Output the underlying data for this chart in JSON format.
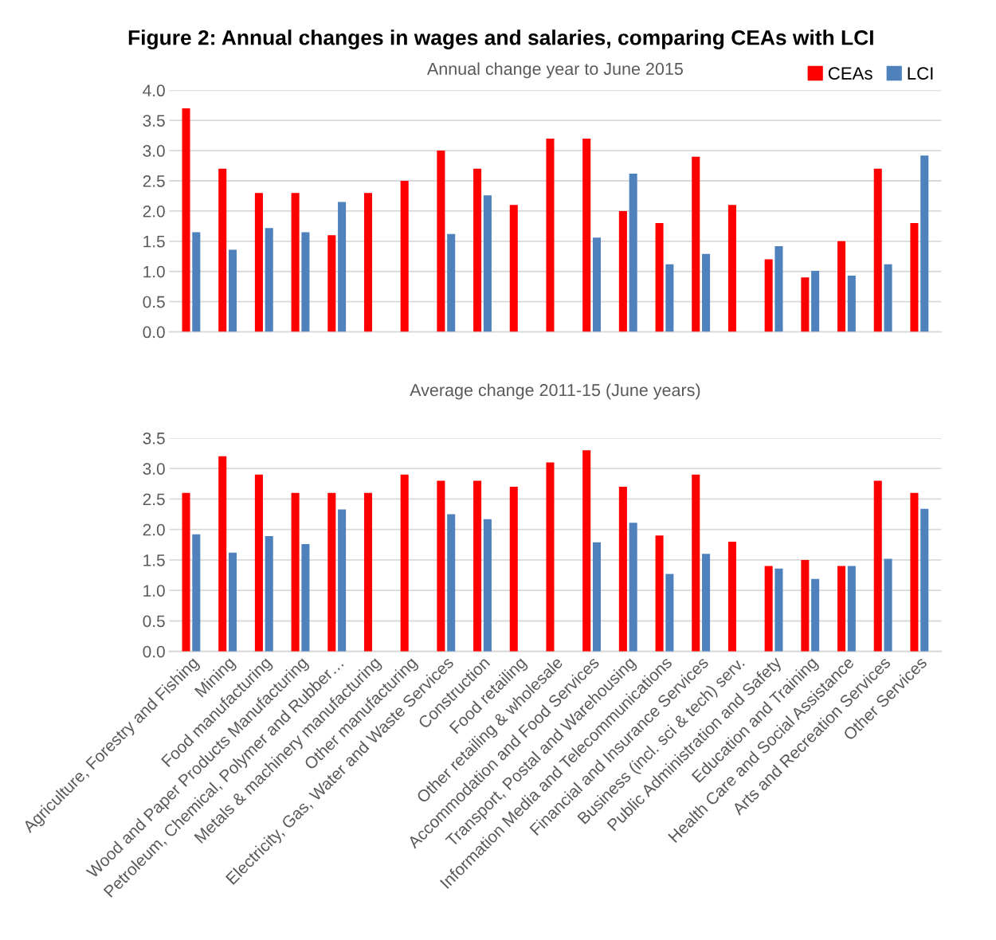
{
  "chart_data": [
    {
      "type": "bar",
      "title": "Figure 2: Annual changes in wages and salaries, comparing CEAs with LCI",
      "subtitle": "Annual change year to June 2015",
      "categories": [
        null,
        null,
        null,
        null,
        null,
        null,
        null,
        null,
        null,
        null,
        null,
        null,
        null,
        null,
        null,
        null,
        null,
        null,
        null,
        null,
        null
      ],
      "series": [
        {
          "name": "CEAs",
          "color": "#ff0000",
          "values": [
            3.7,
            2.7,
            2.3,
            2.3,
            1.6,
            2.3,
            2.5,
            3.0,
            2.7,
            2.1,
            3.2,
            3.2,
            2.0,
            1.8,
            2.9,
            2.1,
            1.2,
            0.9,
            1.5,
            2.7,
            1.8
          ]
        },
        {
          "name": "LCI",
          "color": "#4f81bd",
          "values": [
            1.65,
            1.36,
            1.72,
            1.65,
            2.15,
            null,
            null,
            1.62,
            2.26,
            null,
            null,
            1.56,
            2.62,
            1.12,
            1.29,
            null,
            1.42,
            1.01,
            0.93,
            1.12,
            2.92
          ]
        }
      ],
      "ylim": [
        0,
        4
      ],
      "yticks": [
        {
          "value": 0,
          "label": "0.0"
        },
        {
          "value": 0.5,
          "label": "0.5"
        },
        {
          "value": 1,
          "label": "1.0"
        },
        {
          "value": 1.5,
          "label": "1.5"
        },
        {
          "value": 2,
          "label": "2.0"
        },
        {
          "value": 2.5,
          "label": "2.5"
        },
        {
          "value": 3,
          "label": "3.0"
        },
        {
          "value": 3.5,
          "label": "3.5"
        },
        {
          "value": 4,
          "label": "4.0"
        }
      ],
      "grid": "y",
      "legend": "top right",
      "tick_labels": "y"
    },
    {
      "type": "bar",
      "subtitle": "Average change 2011-15 (June years)",
      "categories": [
        "Agriculture, Forestry and Fishing",
        "Mining",
        "Food manufacturing",
        "Wood and Paper Products Manufacturing",
        "Petroleum, Chemical, Polymer and Rubber…",
        "Metals & machinery manufacturing",
        "Other manufacturing",
        "Electricity, Gas, Water and Waste Services",
        "Construction",
        "Food retailing",
        "Other retailing & wholesale",
        "Accommodation and Food Services",
        "Transport, Postal and Warehousing",
        "Information Media and Telecommunications",
        "Financial and Insurance Services",
        "Business (incl. sci & tech) serv.",
        "Public Administration and Safety",
        "Education and Training",
        "Health Care and Social Assistance",
        "Arts and Recreation Services",
        "Other Services"
      ],
      "series": [
        {
          "color": "#ff0000",
          "values": [
            2.6,
            3.2,
            2.9,
            2.6,
            2.6,
            2.6,
            2.9,
            2.8,
            2.8,
            2.7,
            3.1,
            3.3,
            2.7,
            1.9,
            2.9,
            1.8,
            1.4,
            1.5,
            1.4,
            2.8,
            2.6
          ]
        },
        {
          "color": "#4f81bd",
          "values": [
            1.92,
            1.62,
            1.89,
            1.76,
            2.33,
            null,
            null,
            2.25,
            2.17,
            null,
            null,
            1.79,
            2.11,
            1.27,
            1.6,
            null,
            1.36,
            1.19,
            1.4,
            1.52,
            2.34
          ]
        }
      ],
      "ylim": [
        0,
        3.5
      ],
      "yticks": [
        {
          "value": 0,
          "label": "0.0"
        },
        {
          "value": 0.5,
          "label": "0.5"
        },
        {
          "value": 1,
          "label": "1.0"
        },
        {
          "value": 1.5,
          "label": "1.5"
        },
        {
          "value": 2,
          "label": "2.0"
        },
        {
          "value": 2.5,
          "label": "2.5"
        },
        {
          "value": 3,
          "label": "3.0"
        },
        {
          "value": 3.5,
          "label": "3.5"
        }
      ],
      "grid": "y"
    }
  ]
}
